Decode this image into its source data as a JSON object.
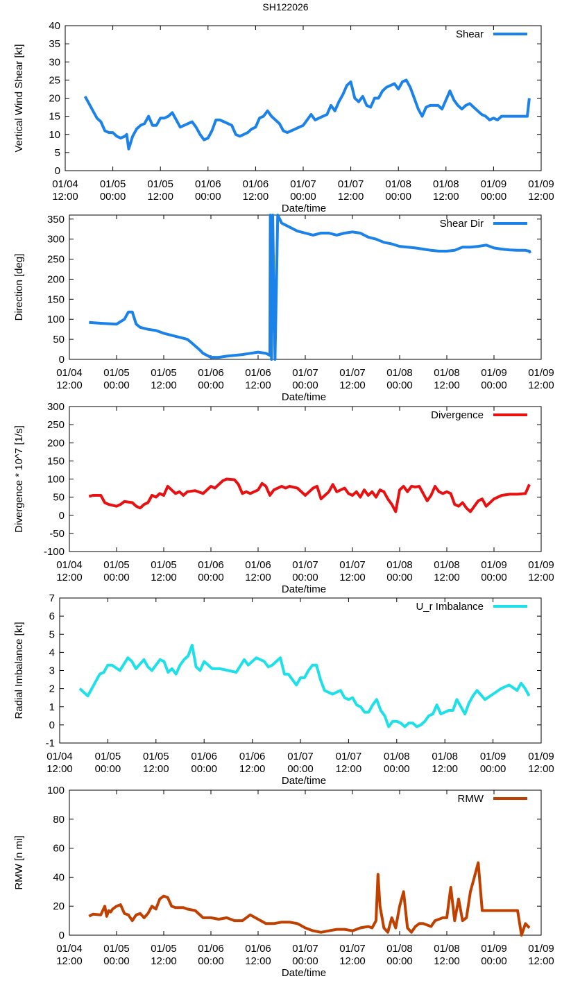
{
  "figure_title": "SH122026",
  "x_tick_labels": [
    [
      "01/04",
      "12:00"
    ],
    [
      "01/05",
      "00:00"
    ],
    [
      "01/05",
      "12:00"
    ],
    [
      "01/06",
      "00:00"
    ],
    [
      "01/06",
      "12:00"
    ],
    [
      "01/07",
      "00:00"
    ],
    [
      "01/07",
      "12:00"
    ],
    [
      "01/08",
      "00:00"
    ],
    [
      "01/08",
      "12:00"
    ],
    [
      "01/09",
      "00:00"
    ],
    [
      "01/09",
      "12:00"
    ]
  ],
  "chart_data": [
    {
      "type": "line",
      "title": "",
      "xlabel": "Date/time",
      "ylabel": "Vertical Wind Shear [kt]",
      "xlim": [
        0,
        120
      ],
      "ylim": [
        0,
        40
      ],
      "yticks": [
        0,
        5,
        10,
        15,
        20,
        25,
        30,
        35,
        40
      ],
      "legend": "top-right",
      "series": [
        {
          "name": "Shear",
          "color": "#1a82e8",
          "x": [
            5,
            6,
            7,
            8,
            9,
            10,
            11,
            12,
            13,
            14,
            15,
            15.5,
            16,
            17,
            18,
            19,
            20,
            21,
            22,
            23,
            24,
            25,
            26,
            27,
            28,
            29,
            30,
            31,
            32,
            33,
            34,
            35,
            36,
            37,
            38,
            39,
            40,
            41,
            42,
            43,
            44,
            45,
            46,
            47,
            48,
            49,
            50,
            51,
            52,
            53,
            54,
            55,
            56,
            57,
            58,
            59,
            60,
            61,
            62,
            63,
            64,
            65,
            66,
            67,
            68,
            69,
            70,
            71,
            72,
            73,
            74,
            75,
            76,
            77,
            78,
            79,
            80,
            81,
            82,
            83,
            84,
            85,
            86,
            87,
            88,
            89,
            90,
            91,
            92,
            93,
            94,
            95,
            96,
            97,
            98,
            99,
            100,
            101,
            102,
            103,
            104,
            105,
            106,
            107,
            108,
            109,
            110,
            111,
            112,
            113,
            114,
            115,
            116,
            116.5,
            117
          ],
          "values": [
            20.5,
            18.5,
            16.5,
            14.5,
            13.5,
            11,
            10.5,
            10.5,
            9.5,
            9,
            9.5,
            10,
            6,
            9.5,
            11.5,
            12.5,
            13,
            15,
            12.5,
            12.5,
            14.5,
            14.5,
            15,
            16,
            14,
            12,
            12.5,
            13,
            13.5,
            12,
            10,
            8.5,
            9,
            11,
            14,
            14,
            13.5,
            13,
            12.5,
            10,
            9.5,
            10,
            10.5,
            11.5,
            12,
            14.5,
            15,
            16.5,
            15,
            14,
            13,
            11,
            10.5,
            11,
            11.5,
            12,
            12.5,
            14,
            15.5,
            14,
            14.5,
            15,
            15.5,
            18,
            16.5,
            19,
            21,
            23.5,
            24.5,
            20,
            19,
            20.5,
            18,
            17.5,
            20,
            20,
            22,
            23,
            23.5,
            24,
            22.5,
            24.5,
            25,
            23,
            20,
            17,
            15,
            17.5,
            18,
            18,
            18,
            17,
            19.5,
            22,
            19.5,
            18,
            17,
            18,
            18.5,
            17.5,
            16.5,
            15.5,
            15,
            14,
            14.5,
            14,
            15,
            15,
            15,
            15,
            15,
            15,
            15,
            15,
            20
          ]
        }
      ]
    },
    {
      "type": "line",
      "title": "",
      "xlabel": "Date/time",
      "ylabel": "Direction [deg]",
      "xlim": [
        0,
        120
      ],
      "ylim": [
        0,
        360
      ],
      "yticks": [
        0,
        50,
        100,
        150,
        200,
        250,
        300,
        350
      ],
      "legend": "top-right",
      "series": [
        {
          "name": "Shear Dir",
          "color": "#1a82e8",
          "x": [
            5,
            8,
            12,
            14,
            15,
            16,
            17,
            18,
            20,
            22,
            24,
            26,
            28,
            30,
            31,
            33,
            34,
            35,
            36,
            38,
            40,
            42,
            44,
            46,
            48,
            50,
            51,
            51.1,
            51.4,
            51.7,
            52.3,
            53,
            54,
            56,
            58,
            60,
            62,
            64,
            66,
            68,
            70,
            72,
            74,
            76,
            78,
            80,
            82,
            84,
            86,
            88,
            90,
            92,
            94,
            96,
            98,
            100,
            102,
            104,
            106,
            108,
            110,
            112,
            114,
            116,
            117,
            117.2
          ],
          "values": [
            92,
            90,
            88,
            100,
            118,
            118,
            88,
            80,
            75,
            72,
            65,
            60,
            55,
            50,
            42,
            25,
            15,
            10,
            5,
            5,
            8,
            10,
            12,
            15,
            18,
            15,
            10,
            360,
            0,
            360,
            0,
            360,
            340,
            330,
            320,
            315,
            310,
            315,
            315,
            310,
            315,
            318,
            315,
            305,
            300,
            292,
            288,
            282,
            280,
            278,
            275,
            272,
            270,
            270,
            272,
            280,
            280,
            282,
            285,
            278,
            275,
            273,
            272,
            272,
            270,
            265
          ]
        }
      ]
    },
    {
      "type": "line",
      "title": "",
      "xlabel": "Date/time",
      "ylabel": "Divergence * 10^7 [1/s]",
      "xlim": [
        0,
        120
      ],
      "ylim": [
        -100,
        300
      ],
      "yticks": [
        -100,
        -50,
        0,
        50,
        100,
        150,
        200,
        250,
        300
      ],
      "legend": "top-right",
      "series": [
        {
          "name": "Divergence",
          "color": "#e81010",
          "x": [
            5,
            6,
            8,
            9,
            10,
            12,
            13,
            14,
            16,
            17,
            18,
            19,
            20,
            21,
            22,
            23,
            24,
            25,
            26,
            27,
            28,
            29,
            30,
            32,
            34,
            36,
            37,
            38,
            39,
            40,
            42,
            43,
            44,
            45,
            46,
            48,
            49,
            50,
            51,
            52,
            53,
            54,
            55,
            56,
            58,
            60,
            61,
            62,
            63,
            64,
            65,
            66,
            67,
            68,
            69,
            70,
            71,
            72,
            73,
            74,
            75,
            76,
            77,
            78,
            79,
            80,
            81,
            82,
            83,
            84,
            85,
            86,
            87,
            88,
            89,
            90,
            91,
            92,
            93,
            94,
            95,
            96,
            97,
            98,
            99,
            100,
            101,
            102,
            103,
            104,
            105,
            106,
            107,
            108,
            110,
            112,
            114,
            116,
            117
          ],
          "values": [
            52,
            55,
            55,
            35,
            30,
            25,
            30,
            38,
            35,
            25,
            20,
            30,
            35,
            55,
            50,
            60,
            55,
            80,
            70,
            60,
            65,
            55,
            65,
            68,
            60,
            80,
            75,
            85,
            95,
            100,
            98,
            85,
            60,
            65,
            60,
            70,
            88,
            80,
            55,
            70,
            75,
            80,
            75,
            80,
            75,
            55,
            65,
            75,
            80,
            45,
            55,
            65,
            85,
            65,
            70,
            75,
            60,
            55,
            65,
            50,
            70,
            55,
            65,
            50,
            70,
            65,
            45,
            30,
            10,
            70,
            80,
            65,
            80,
            78,
            80,
            60,
            40,
            55,
            80,
            65,
            60,
            65,
            60,
            30,
            25,
            35,
            20,
            10,
            25,
            40,
            45,
            25,
            35,
            45,
            55,
            58,
            58,
            60,
            85
          ]
        }
      ]
    },
    {
      "type": "line",
      "title": "",
      "xlabel": "Date/time",
      "ylabel": "Radial Imbalance [kt]",
      "xlim": [
        0,
        120
      ],
      "ylim": [
        -1,
        7
      ],
      "yticks": [
        -1,
        0,
        1,
        2,
        3,
        4,
        5,
        6,
        7
      ],
      "legend": "top-right",
      "series": [
        {
          "name": "U_r Imbalance",
          "color": "#1ee0e8",
          "x": [
            5,
            7,
            8,
            10,
            11,
            12,
            13,
            15,
            17,
            18,
            19,
            21,
            22,
            23,
            25,
            26,
            27,
            28,
            29,
            30,
            31,
            32,
            33,
            34,
            35,
            36,
            38,
            39,
            40,
            42,
            44,
            46,
            47,
            48,
            49,
            50,
            51,
            52,
            53,
            54,
            55,
            56,
            57,
            58,
            59,
            60,
            61,
            62,
            63,
            64,
            65,
            66,
            67,
            68,
            69,
            70,
            71,
            72,
            73,
            74,
            75,
            76,
            77,
            78,
            79,
            80,
            81,
            82,
            83,
            84,
            85,
            86,
            87,
            88,
            89,
            90,
            91,
            92,
            93,
            94,
            95,
            96,
            97,
            98,
            99,
            100,
            101,
            102,
            103,
            104,
            106,
            108,
            110,
            112,
            114,
            115,
            116,
            117
          ],
          "values": [
            2.0,
            1.6,
            2.0,
            2.8,
            2.9,
            3.3,
            3.3,
            3.0,
            3.7,
            3.5,
            3.1,
            3.6,
            3.2,
            3.0,
            3.6,
            3.5,
            2.9,
            3.1,
            2.8,
            3.3,
            3.6,
            3.8,
            4.4,
            3.2,
            3.0,
            3.5,
            3.1,
            3.1,
            3.1,
            3.0,
            2.9,
            3.6,
            3.3,
            3.5,
            3.7,
            3.6,
            3.5,
            3.2,
            3.3,
            3.5,
            3.7,
            2.8,
            2.8,
            2.5,
            2.2,
            2.6,
            2.6,
            3.0,
            3.3,
            3.3,
            2.5,
            1.9,
            1.8,
            1.7,
            1.8,
            1.9,
            1.5,
            1.4,
            1.5,
            1.1,
            1.0,
            0.7,
            0.7,
            1.1,
            1.4,
            0.8,
            0.5,
            -0.1,
            0.2,
            0.2,
            0.1,
            -0.1,
            0.1,
            0.1,
            -0.1,
            0.0,
            0.2,
            0.5,
            0.6,
            1.1,
            0.6,
            0.7,
            0.8,
            0.8,
            1.4,
            1.0,
            0.6,
            1.2,
            1.6,
            1.9,
            1.4,
            1.7,
            2.0,
            2.2,
            1.9,
            2.3,
            2.0,
            1.6
          ]
        }
      ]
    },
    {
      "type": "line",
      "title": "",
      "xlabel": "Date/time",
      "ylabel": "RMW [n mi]",
      "xlim": [
        0,
        120
      ],
      "ylim": [
        0,
        100
      ],
      "yticks": [
        0,
        20,
        40,
        60,
        80,
        100
      ],
      "legend": "top-right",
      "series": [
        {
          "name": "RMW",
          "color": "#c04000",
          "x": [
            5,
            6,
            8,
            9,
            9.5,
            10,
            10.5,
            11,
            12,
            13,
            14,
            15,
            16,
            17,
            18,
            19,
            20,
            21,
            22,
            23,
            24,
            25,
            26,
            27,
            28,
            29,
            30,
            32,
            34,
            36,
            38,
            40,
            42,
            44,
            46,
            48,
            50,
            52,
            54,
            56,
            58,
            60,
            62,
            64,
            66,
            68,
            70,
            72,
            74,
            76,
            77,
            78,
            78.5,
            79,
            80,
            81,
            82,
            83,
            84,
            85,
            86,
            87,
            88,
            89,
            90,
            91,
            92,
            93,
            94,
            95,
            96,
            97,
            98,
            99,
            100,
            101,
            102,
            103,
            104,
            105,
            106,
            108,
            110,
            112,
            114,
            115,
            116,
            117
          ],
          "values": [
            13,
            14.5,
            14,
            20,
            13,
            17,
            16,
            18,
            20,
            21,
            15,
            14,
            10,
            14,
            15,
            12,
            15,
            20,
            18,
            25,
            27,
            26,
            20,
            19,
            19,
            19,
            18,
            17,
            12,
            12,
            11,
            12,
            10,
            10,
            14,
            11,
            8,
            8,
            9,
            9,
            8,
            5,
            3,
            2,
            3,
            4,
            4,
            3,
            5,
            6,
            5,
            10,
            42,
            20,
            5,
            2,
            12,
            5,
            20,
            30,
            5,
            2,
            6,
            8,
            8,
            7,
            6,
            10,
            11,
            12,
            12,
            33,
            10,
            25,
            10,
            12,
            30,
            40,
            50,
            17,
            17,
            17,
            17,
            17,
            17,
            0,
            8,
            5
          ]
        }
      ]
    }
  ]
}
